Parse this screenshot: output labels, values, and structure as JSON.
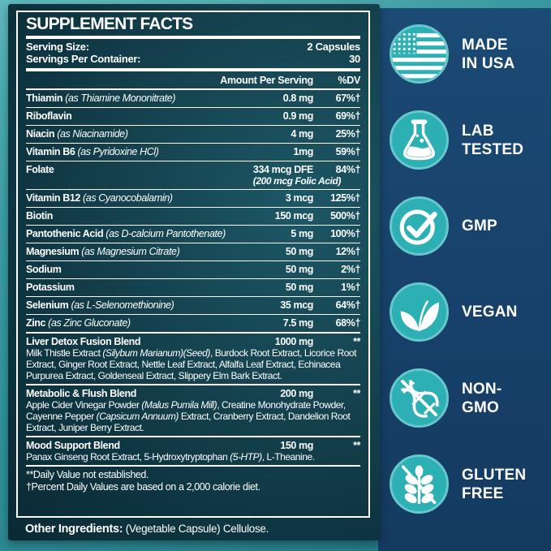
{
  "label": {
    "title": "SUPPLEMENT FACTS",
    "serving_size_label": "Serving Size:",
    "serving_size_value": "2 Capsules",
    "servings_label": "Servings Per Container:",
    "servings_value": "30",
    "col_amount": "Amount Per Serving",
    "col_dv": "%DV",
    "rows": [
      {
        "name": "Thiamin",
        "detail": "(as Thiamine Mononitrate)",
        "amount": "0.8 mg",
        "dv": "67%†"
      },
      {
        "name": "Riboflavin",
        "detail": "",
        "amount": "0.9 mg",
        "dv": "69%†"
      },
      {
        "name": "Niacin",
        "detail": "(as Niacinamide)",
        "amount": "4 mg",
        "dv": "25%†"
      },
      {
        "name": "Vitamin B6",
        "detail": "(as Pyridoxine HCl)",
        "amount": "1mg",
        "dv": "59%†"
      },
      {
        "name": "Folate",
        "detail": "",
        "amount": "334 mcg DFE",
        "amount_sub": "(200 mcg Folic Acid)",
        "dv": "84%†"
      },
      {
        "name": "Vitamin B12",
        "detail": "(as Cyanocobalamin)",
        "amount": "3 mcg",
        "dv": "125%†"
      },
      {
        "name": "Biotin",
        "detail": "",
        "amount": "150 mcg",
        "dv": "500%†"
      },
      {
        "name": "Pantothenic Acid",
        "detail": "(as D-calcium Pantothenate)",
        "amount": "5 mg",
        "dv": "100%†"
      },
      {
        "name": "Magnesium",
        "detail": "(as Magnesium Citrate)",
        "amount": "50 mg",
        "dv": "12%†"
      },
      {
        "name": "Sodium",
        "detail": "",
        "amount": "50 mg",
        "dv": "2%†"
      },
      {
        "name": "Potassium",
        "detail": "",
        "amount": "50 mg",
        "dv": "1%†"
      },
      {
        "name": "Selenium",
        "detail": "(as L-Selenomethionine)",
        "amount": "35 mcg",
        "dv": "64%†"
      },
      {
        "name": "Zinc",
        "detail": "(as Zinc Gluconate)",
        "amount": "7.5 mg",
        "dv": "68%†"
      }
    ],
    "blends": [
      {
        "name": "Liver Detox Fusion Blend",
        "amount": "1000 mg",
        "dv": "**",
        "desc": [
          {
            "t": "Milk Thistle Extract ",
            "i": false
          },
          {
            "t": "(Silybum Marianum)(Seed)",
            "i": true
          },
          {
            "t": ", Burdock Root Extract, Licorice Root Extract, Ginger Root Extract, Nettle Leaf Extract, Alfalfa Leaf Extract, Echinacea Purpurea Extract, Goldenseal Extract, Slippery Elm Bark Extract.",
            "i": false
          }
        ]
      },
      {
        "name": "Metabolic & Flush Blend",
        "amount": "200 mg",
        "dv": "**",
        "desc": [
          {
            "t": "Apple Cider Vinegar Powder ",
            "i": false
          },
          {
            "t": "(Malus Pumila Mill)",
            "i": true
          },
          {
            "t": ", Creatine Monohydrate Powder, Cayenne Pepper ",
            "i": false
          },
          {
            "t": "(Capsicum Annuum)",
            "i": true
          },
          {
            "t": " Extract, Cranberry Extract, Dandelion Root Extract, Juniper Berry Extract.",
            "i": false
          }
        ]
      },
      {
        "name": "Mood Support Blend",
        "amount": "150 mg",
        "dv": "**",
        "desc": [
          {
            "t": "Panax Ginseng Root Extract, 5-Hydroxytryptophan ",
            "i": false
          },
          {
            "t": "(5-HTP)",
            "i": true
          },
          {
            "t": ", L-Theanine.",
            "i": false
          }
        ]
      }
    ],
    "footnotes": [
      "**Daily Value not established.",
      "†Percent Daily Values are based on a 2,000 calorie diet."
    ],
    "other_label": "Other Ingredients:",
    "other_value": " (Vegetable Capsule) Cellulose."
  },
  "badges": [
    {
      "icon": "usa-flag-icon",
      "lines": [
        "MADE",
        "IN USA"
      ]
    },
    {
      "icon": "lab-flask-icon",
      "lines": [
        "LAB",
        "TESTED"
      ]
    },
    {
      "icon": "gmp-checkmark-icon",
      "lines": [
        "GMP",
        ""
      ]
    },
    {
      "icon": "vegan-leaf-icon",
      "lines": [
        "VEGAN",
        ""
      ]
    },
    {
      "icon": "non-gmo-dna-icon",
      "lines": [
        "NON-",
        "GMO"
      ]
    },
    {
      "icon": "gluten-free-wheat-icon",
      "lines": [
        "GLUTEN",
        "FREE"
      ]
    }
  ],
  "colors": {
    "outer_teal": "#2e8d96",
    "panel_dark": "#113c49",
    "navy": "#17416b",
    "badge_teal": "#2db0b4",
    "text": "#ffffff"
  }
}
